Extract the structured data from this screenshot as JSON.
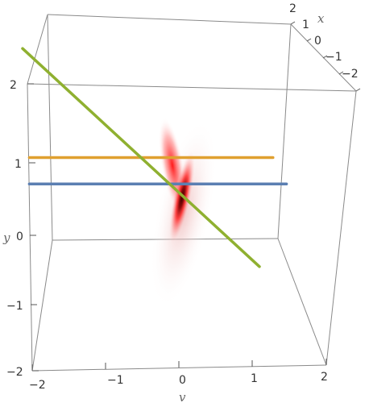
{
  "chart_data": {
    "type": "line",
    "subtype": "3d-plot",
    "title": "",
    "axes": {
      "v": {
        "label": "v",
        "range": [
          -2,
          2
        ],
        "ticks": [
          "−2",
          "−1",
          "0",
          "1",
          "2"
        ]
      },
      "y": {
        "label": "y",
        "range": [
          -2,
          2
        ],
        "ticks": [
          "−2",
          "−1",
          "0",
          "1",
          "2"
        ]
      },
      "x": {
        "label": "x",
        "range": [
          -2,
          2
        ],
        "ticks": [
          "2",
          "1",
          "0",
          "−1",
          "−2"
        ]
      }
    },
    "series": [
      {
        "color": "#e0a030",
        "from": {
          "v": -1.9,
          "y": 1.25
        },
        "to": {
          "v": 1.7,
          "y": 1.25
        }
      },
      {
        "color": "#5b7fb2",
        "from": {
          "v": -1.9,
          "y": 0.85
        },
        "to": {
          "v": 1.9,
          "y": 0.85
        }
      },
      {
        "color": "#8fb030",
        "from": {
          "v": -2.0,
          "y": 2.9
        },
        "to": {
          "v": 1.5,
          "y": -0.4
        }
      }
    ],
    "density": {
      "colors": [
        "#ff2020",
        "#3a0000"
      ],
      "center": {
        "v": 0.0,
        "y": 0.9
      },
      "orientation": "steep, slightly tilted"
    },
    "grid": false,
    "box": true
  }
}
